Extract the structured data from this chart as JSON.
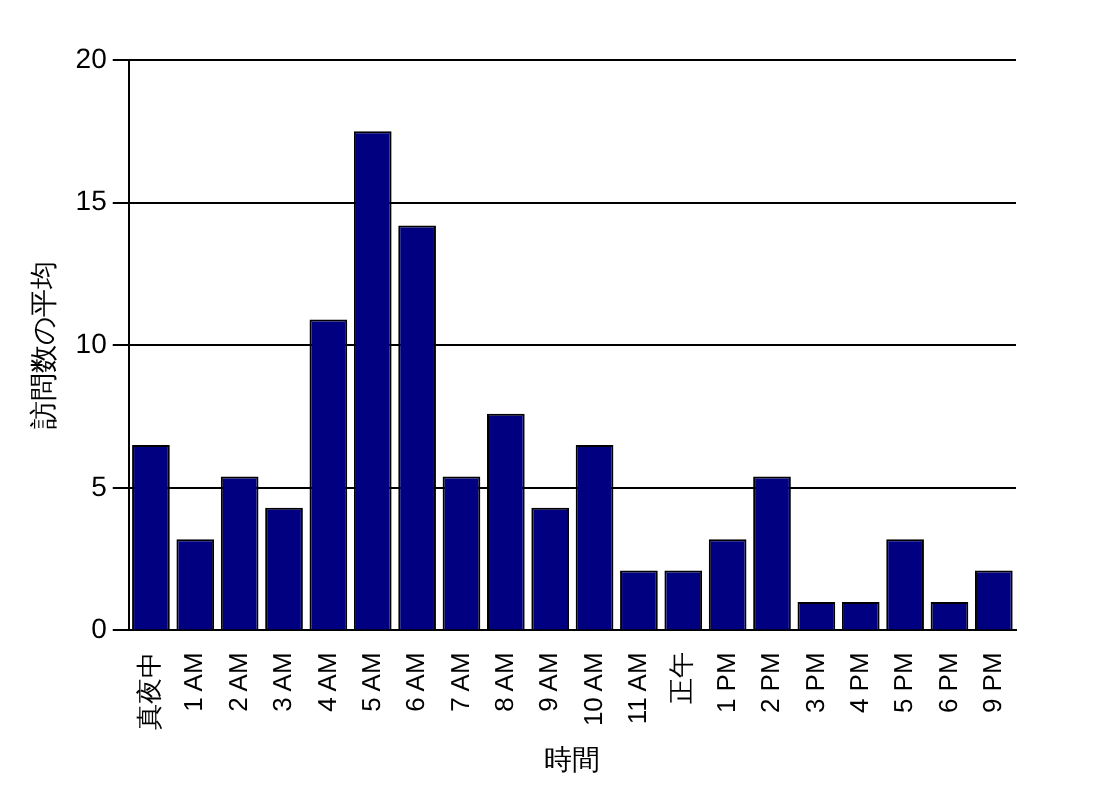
{
  "chart_data": {
    "type": "bar",
    "xlabel": "時間",
    "ylabel": "訪問数の平均",
    "categories": [
      "真夜中",
      "1 AM",
      "2 AM",
      "3 AM",
      "4 AM",
      "5 AM",
      "6 AM",
      "7 AM",
      "8 AM",
      "9 AM",
      "10 AM",
      "11 AM",
      "正午",
      "1 PM",
      "2 PM",
      "3 PM",
      "4 PM",
      "5 PM",
      "6 PM",
      "9 PM"
    ],
    "values": [
      6.5,
      3.2,
      5.4,
      4.3,
      10.9,
      17.5,
      14.2,
      5.4,
      7.6,
      4.3,
      6.5,
      2.1,
      2.1,
      3.2,
      5.4,
      1.0,
      1.0,
      3.2,
      1.0,
      2.1
    ],
    "color": "#000080",
    "ylim": [
      0,
      20
    ],
    "yticks": [
      0,
      5,
      10,
      15,
      20
    ],
    "grid": "y",
    "legend": false
  }
}
